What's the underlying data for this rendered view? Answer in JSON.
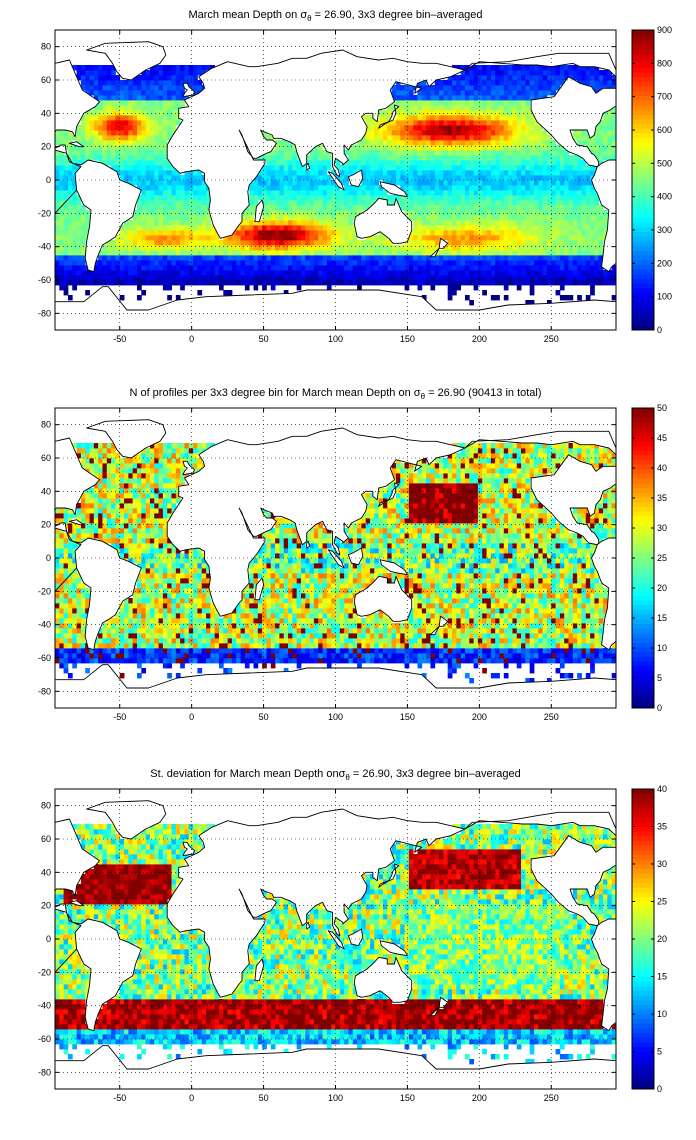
{
  "figure": {
    "colors": {
      "background": "#ffffff",
      "land": "#ffffff",
      "coastline": "#000000",
      "colormap": "jet"
    }
  },
  "chart_data": [
    {
      "type": "heatmap",
      "title_parts": [
        "March mean Depth on ",
        "σ",
        "θ",
        " = 26.90, 3x3 degree bin–averaged"
      ],
      "x_ticks": [
        -50,
        0,
        50,
        100,
        150,
        200,
        250
      ],
      "y_ticks": [
        -80,
        -60,
        -40,
        -20,
        0,
        20,
        40,
        60,
        80
      ],
      "xlim": [
        -95,
        295
      ],
      "ylim": [
        -90,
        90
      ],
      "grid": true,
      "colorbar": {
        "min": 0,
        "max": 900,
        "ticks": [
          0,
          100,
          200,
          300,
          400,
          500,
          600,
          700,
          800,
          900
        ],
        "placement": "right"
      },
      "bin_size_deg": 3,
      "field": "mean_depth"
    },
    {
      "type": "heatmap",
      "title_parts": [
        "N of profiles per 3x3 degree bin for March mean Depth on ",
        "σ",
        "θ",
        " = 26.90 (90413 in total)"
      ],
      "x_ticks": [
        -50,
        0,
        50,
        100,
        150,
        200,
        250
      ],
      "y_ticks": [
        -80,
        -60,
        -40,
        -20,
        0,
        20,
        40,
        60,
        80
      ],
      "xlim": [
        -95,
        295
      ],
      "ylim": [
        -90,
        90
      ],
      "grid": true,
      "colorbar": {
        "min": 0,
        "max": 50,
        "ticks": [
          0,
          5,
          10,
          15,
          20,
          25,
          30,
          35,
          40,
          45,
          50
        ],
        "placement": "right"
      },
      "bin_size_deg": 3,
      "field": "profile_count"
    },
    {
      "type": "heatmap",
      "title_parts": [
        "St. deviation for March mean Depth on",
        "σ",
        "θ",
        " = 26.90, 3x3 degree bin–averaged"
      ],
      "x_ticks": [
        -50,
        0,
        50,
        100,
        150,
        200,
        250
      ],
      "y_ticks": [
        -80,
        -60,
        -40,
        -20,
        0,
        20,
        40,
        60,
        80
      ],
      "xlim": [
        -95,
        295
      ],
      "ylim": [
        -90,
        90
      ],
      "grid": true,
      "colorbar": {
        "min": 0,
        "max": 40,
        "ticks": [
          0,
          5,
          10,
          15,
          20,
          25,
          30,
          35,
          40
        ],
        "placement": "right"
      },
      "bin_size_deg": 3,
      "field": "std_depth"
    }
  ]
}
